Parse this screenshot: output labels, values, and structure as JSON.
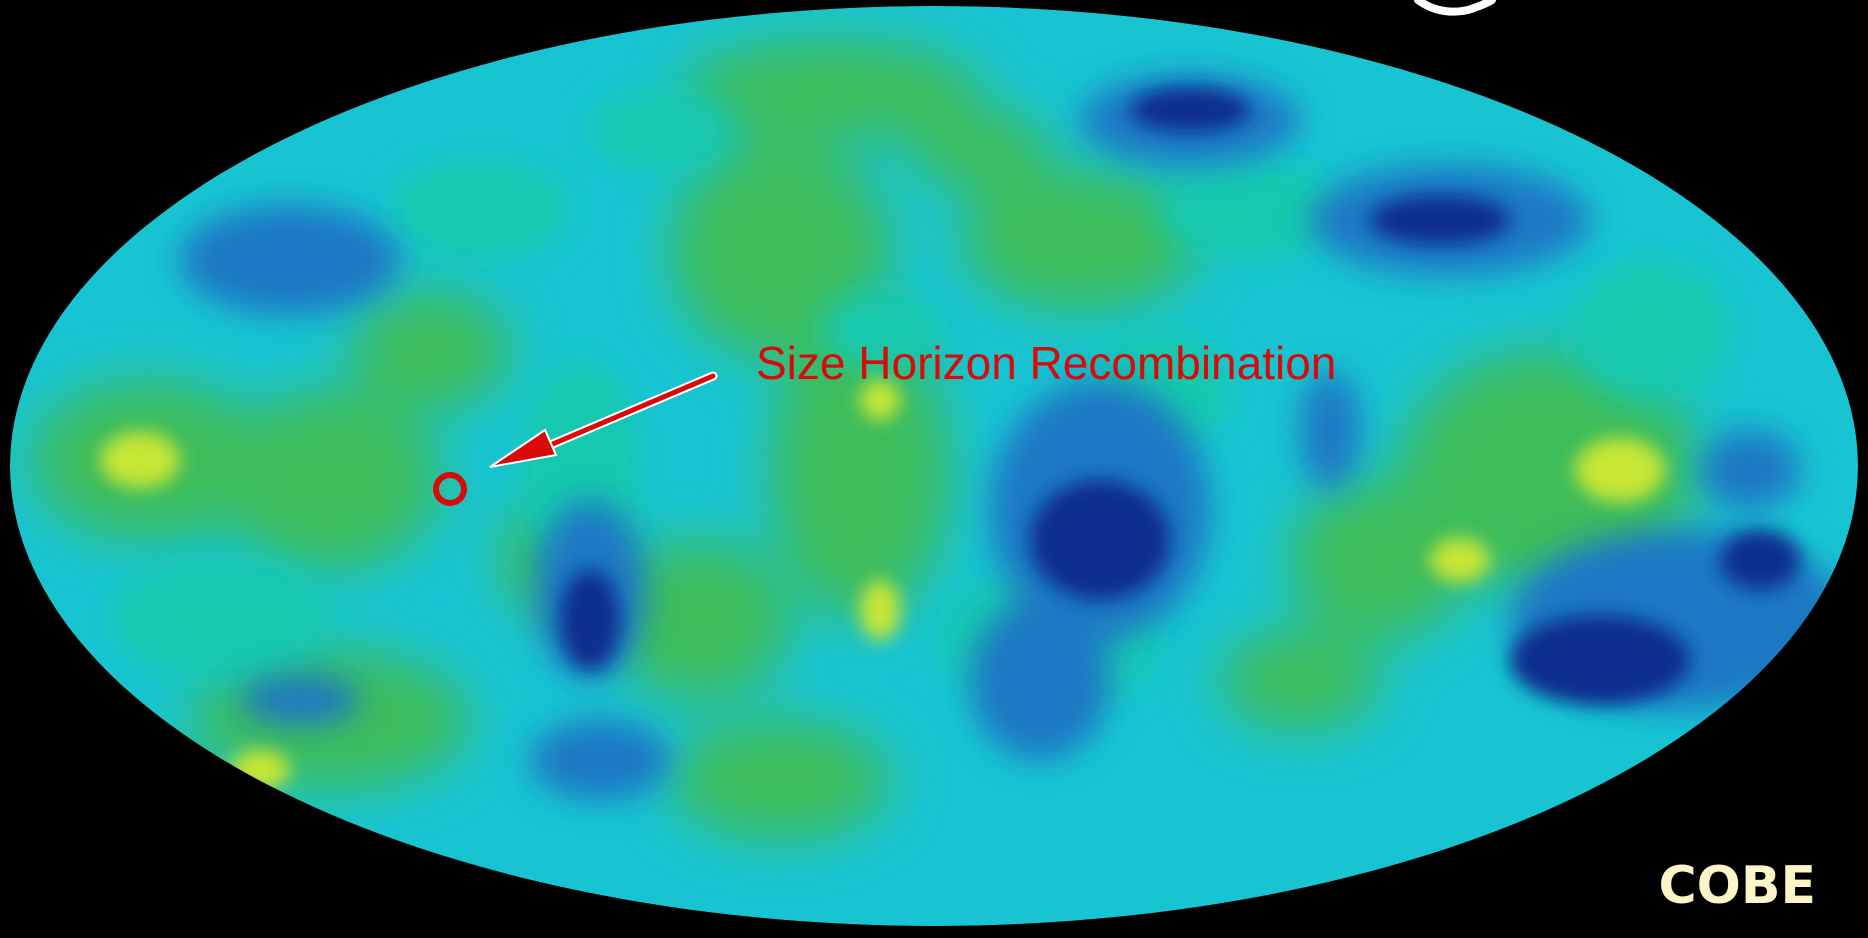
{
  "figure": {
    "annotation_text": "Size Horizon Recombination",
    "brand_text": "COBE"
  },
  "colors": {
    "background": "#000000",
    "map_cyan": "#18c4d2",
    "map_teal": "#14c8ae",
    "map_green": "#3ebc5a",
    "map_yellow_green": "#c8e636",
    "map_blue": "#1f78c4",
    "map_dark_blue": "#102e8e",
    "annotation": "#d80a0a",
    "brand": "#fff4c8",
    "arrow_outline": "#ffffff"
  }
}
